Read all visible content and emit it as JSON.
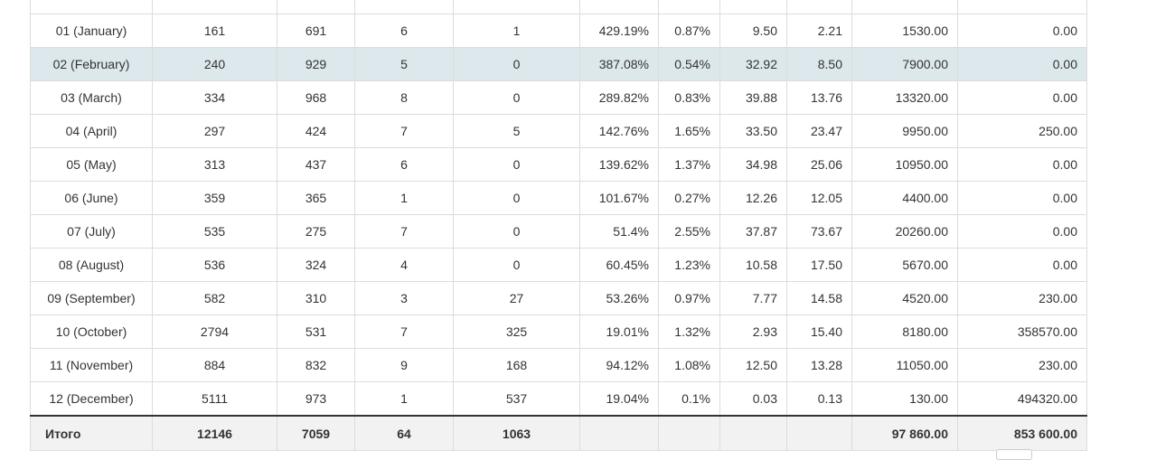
{
  "columns": [
    "",
    "",
    "",
    "",
    "",
    "",
    "",
    "",
    "",
    "",
    ""
  ],
  "rows": [
    [
      "01 (January)",
      "161",
      "691",
      "6",
      "1",
      "429.19%",
      "0.87%",
      "9.50",
      "2.21",
      "1530.00",
      "0.00"
    ],
    [
      "02 (February)",
      "240",
      "929",
      "5",
      "0",
      "387.08%",
      "0.54%",
      "32.92",
      "8.50",
      "7900.00",
      "0.00"
    ],
    [
      "03 (March)",
      "334",
      "968",
      "8",
      "0",
      "289.82%",
      "0.83%",
      "39.88",
      "13.76",
      "13320.00",
      "0.00"
    ],
    [
      "04 (April)",
      "297",
      "424",
      "7",
      "5",
      "142.76%",
      "1.65%",
      "33.50",
      "23.47",
      "9950.00",
      "250.00"
    ],
    [
      "05 (May)",
      "313",
      "437",
      "6",
      "0",
      "139.62%",
      "1.37%",
      "34.98",
      "25.06",
      "10950.00",
      "0.00"
    ],
    [
      "06 (June)",
      "359",
      "365",
      "1",
      "0",
      "101.67%",
      "0.27%",
      "12.26",
      "12.05",
      "4400.00",
      "0.00"
    ],
    [
      "07 (July)",
      "535",
      "275",
      "7",
      "0",
      "51.4%",
      "2.55%",
      "37.87",
      "73.67",
      "20260.00",
      "0.00"
    ],
    [
      "08 (August)",
      "536",
      "324",
      "4",
      "0",
      "60.45%",
      "1.23%",
      "10.58",
      "17.50",
      "5670.00",
      "0.00"
    ],
    [
      "09 (September)",
      "582",
      "310",
      "3",
      "27",
      "53.26%",
      "0.97%",
      "7.77",
      "14.58",
      "4520.00",
      "230.00"
    ],
    [
      "10 (October)",
      "2794",
      "531",
      "7",
      "325",
      "19.01%",
      "1.32%",
      "2.93",
      "15.40",
      "8180.00",
      "358570.00"
    ],
    [
      "11 (November)",
      "884",
      "832",
      "9",
      "168",
      "94.12%",
      "1.08%",
      "12.50",
      "13.28",
      "11050.00",
      "230.00"
    ],
    [
      "12 (December)",
      "5111",
      "973",
      "1",
      "537",
      "19.04%",
      "0.1%",
      "0.03",
      "0.13",
      "130.00",
      "494320.00"
    ]
  ],
  "highlighted_row": 1,
  "totals": [
    "Итого",
    "12146",
    "7059",
    "64",
    "1063",
    "",
    "",
    "",
    "",
    "97 860.00",
    "853 600.00"
  ],
  "colors": {
    "highlight_row": "#dde8ec",
    "totals_background": "#f2f2f2"
  }
}
